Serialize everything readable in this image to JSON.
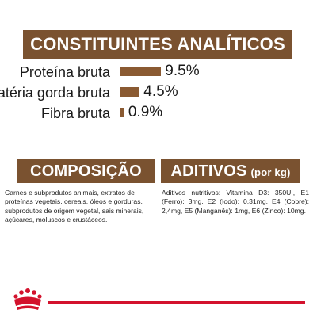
{
  "header": {
    "title": "CONSTITUINTES ANALÍTICOS"
  },
  "analytics": {
    "items": [
      {
        "label": "Proteína bruta",
        "value_text": "9.5%",
        "value": 9.5
      },
      {
        "label": "Matéria gorda bruta",
        "value_text": "4.5%",
        "value": 4.5
      },
      {
        "label": "Fibra bruta",
        "value_text": "0.9%",
        "value": 0.9
      }
    ],
    "bar_color": "#8a5a32"
  },
  "composition": {
    "title": "COMPOSIÇÃO",
    "text": "Carnes e subprodutos animais, extratos de proteínas vegetais, cereais, óleos e gorduras, subprodutos de origem vegetal, sais minerais, açúcares, moluscos e crustáceos."
  },
  "additives": {
    "title": "ADITIVOS",
    "subtitle": "(por kg)",
    "text": "Aditivos nutritivos: Vitamina D3: 350UI, E1 (Ferro): 3mg, E2 (Iodo): 0,31mg, E4 (Cobre): 2,4mg, E5 (Manganês): 1mg, E6 (Zinco): 10mg."
  },
  "brand": {
    "logo_icon": "royal-canin-crown-icon",
    "accent_color": "#d3122d",
    "banner_color": "#7a5230"
  }
}
